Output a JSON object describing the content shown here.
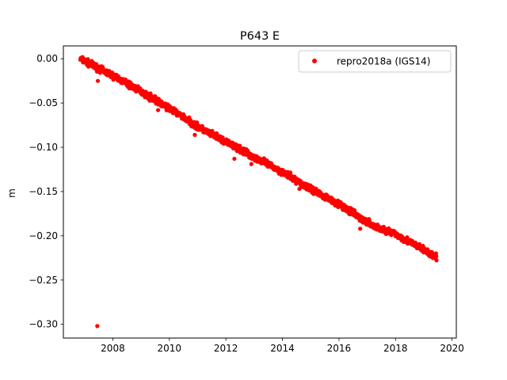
{
  "chart_data": {
    "type": "scatter",
    "title": "P643 E",
    "xlabel": "",
    "ylabel": "m",
    "xlim": [
      2006.25,
      2020.15
    ],
    "ylim": [
      -0.3155,
      0.0145
    ],
    "x_ticks": [
      {
        "value": 2008,
        "label": "2008"
      },
      {
        "value": 2010,
        "label": "2010"
      },
      {
        "value": 2012,
        "label": "2012"
      },
      {
        "value": 2014,
        "label": "2014"
      },
      {
        "value": 2016,
        "label": "2016"
      },
      {
        "value": 2018,
        "label": "2018"
      },
      {
        "value": 2020,
        "label": "2020"
      }
    ],
    "y_ticks": [
      {
        "value": 0.0,
        "label": "0.00"
      },
      {
        "value": -0.05,
        "label": "−0.05"
      },
      {
        "value": -0.1,
        "label": "−0.10"
      },
      {
        "value": -0.15,
        "label": "−0.15"
      },
      {
        "value": -0.2,
        "label": "−0.20"
      },
      {
        "value": -0.25,
        "label": "−0.25"
      },
      {
        "value": -0.3,
        "label": "−0.30"
      }
    ],
    "grid": false,
    "legend_position": "upper right",
    "series": [
      {
        "name": "repro2018a (IGS14)",
        "color": "#ff0000",
        "marker": "circle",
        "trend": [
          {
            "x": 2006.85,
            "y": 0.0
          },
          {
            "x": 2007.5,
            "y": -0.011
          },
          {
            "x": 2008.0,
            "y": -0.019
          },
          {
            "x": 2009.0,
            "y": -0.037
          },
          {
            "x": 2010.0,
            "y": -0.056
          },
          {
            "x": 2010.5,
            "y": -0.066
          },
          {
            "x": 2011.0,
            "y": -0.077
          },
          {
            "x": 2012.0,
            "y": -0.094
          },
          {
            "x": 2013.0,
            "y": -0.111
          },
          {
            "x": 2014.0,
            "y": -0.128
          },
          {
            "x": 2015.0,
            "y": -0.147
          },
          {
            "x": 2016.0,
            "y": -0.164
          },
          {
            "x": 2016.8,
            "y": -0.181
          },
          {
            "x": 2017.3,
            "y": -0.19
          },
          {
            "x": 2018.0,
            "y": -0.198
          },
          {
            "x": 2019.0,
            "y": -0.216
          },
          {
            "x": 2019.45,
            "y": -0.225
          }
        ],
        "outliers": [
          {
            "x": 2007.45,
            "y": -0.302
          },
          {
            "x": 2007.47,
            "y": -0.025
          },
          {
            "x": 2010.9,
            "y": -0.086
          },
          {
            "x": 2012.3,
            "y": -0.113
          },
          {
            "x": 2012.9,
            "y": -0.119
          },
          {
            "x": 2016.75,
            "y": -0.192
          },
          {
            "x": 2009.6,
            "y": -0.058
          },
          {
            "x": 2014.6,
            "y": -0.147
          }
        ]
      }
    ]
  }
}
